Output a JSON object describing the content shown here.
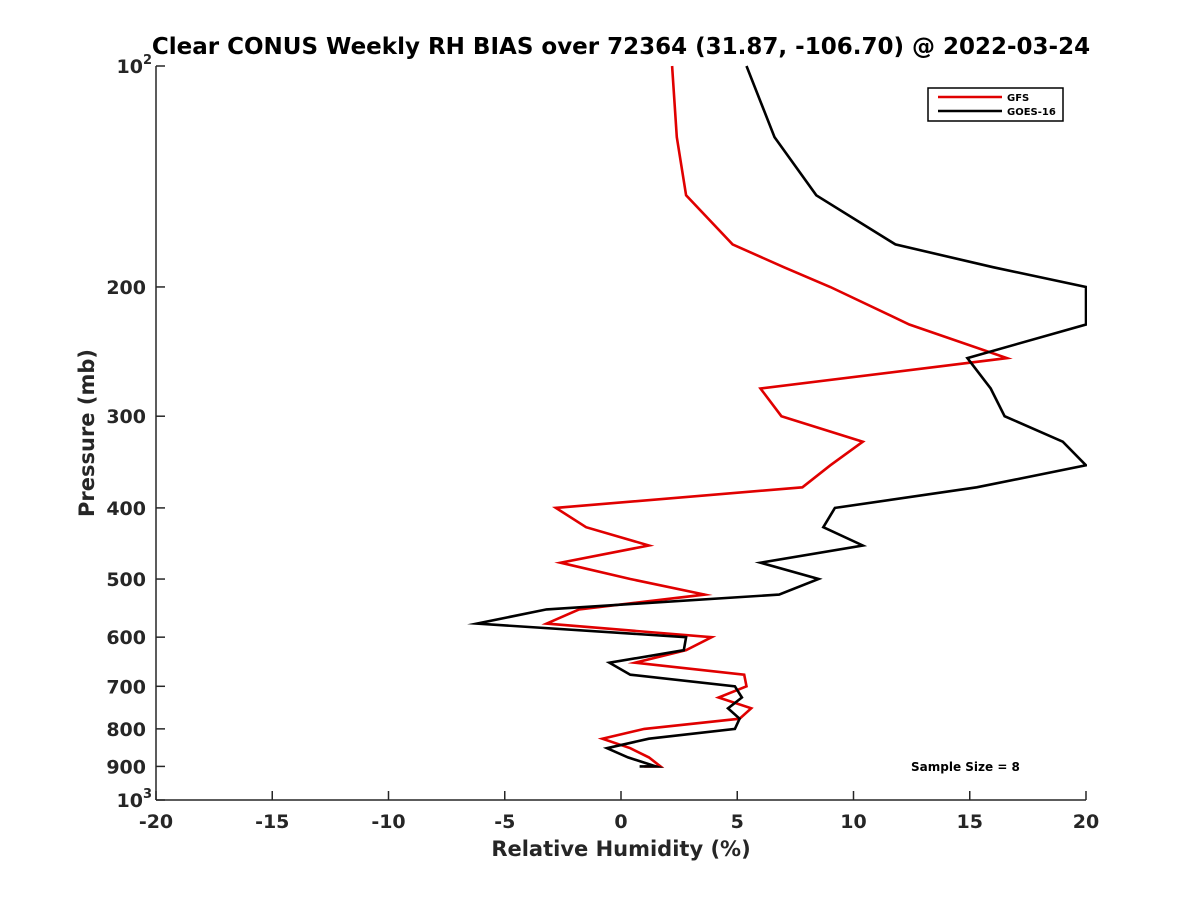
{
  "chart_data": {
    "type": "line",
    "title": "Clear CONUS Weekly RH BIAS over 72364 (31.87, -106.70) @ 2022-03-24",
    "xlabel": "Relative Humidity (%)",
    "ylabel": "Pressure (mb)",
    "xlim": [
      -20,
      20
    ],
    "ylim": [
      100,
      1000
    ],
    "y_scale": "log",
    "y_reversed": true,
    "grid": false,
    "legend_position": "top-right",
    "x_ticks": [
      -20,
      -15,
      -10,
      -5,
      0,
      5,
      10,
      15,
      20
    ],
    "x_tick_labels": [
      "-20",
      "-15",
      "-10",
      "-5",
      "0",
      "5",
      "10",
      "15",
      "20"
    ],
    "y_ticks": [
      100,
      200,
      300,
      400,
      500,
      600,
      700,
      800,
      900,
      1000
    ],
    "y_tick_labels": [
      "10^2",
      "200",
      "300",
      "400",
      "500",
      "600",
      "700",
      "800",
      "900",
      "10^3"
    ],
    "annotation": "Sample Size = 8",
    "series": [
      {
        "name": "GFS",
        "color": "#e00000",
        "points": [
          [
            2.2,
            100
          ],
          [
            2.4,
            125
          ],
          [
            2.8,
            150
          ],
          [
            4.8,
            175
          ],
          [
            7.0,
            188
          ],
          [
            9.0,
            200
          ],
          [
            12.4,
            225
          ],
          [
            16.6,
            250
          ],
          [
            6.0,
            275
          ],
          [
            6.9,
            300
          ],
          [
            10.4,
            325
          ],
          [
            9.0,
            350
          ],
          [
            7.8,
            375
          ],
          [
            -2.8,
            400
          ],
          [
            -1.5,
            425
          ],
          [
            1.2,
            450
          ],
          [
            -2.6,
            475
          ],
          [
            0.4,
            500
          ],
          [
            3.6,
            525
          ],
          [
            -1.8,
            550
          ],
          [
            -3.2,
            575
          ],
          [
            3.9,
            600
          ],
          [
            2.8,
            625
          ],
          [
            0.6,
            650
          ],
          [
            5.3,
            675
          ],
          [
            5.4,
            700
          ],
          [
            4.2,
            725
          ],
          [
            5.6,
            750
          ],
          [
            5.1,
            775
          ],
          [
            1.0,
            800
          ],
          [
            -0.8,
            825
          ],
          [
            0.4,
            850
          ],
          [
            1.2,
            875
          ],
          [
            1.7,
            900
          ],
          [
            1.0,
            900
          ]
        ]
      },
      {
        "name": "GOES-16",
        "color": "#000000",
        "points": [
          [
            5.4,
            100
          ],
          [
            6.6,
            125
          ],
          [
            8.4,
            150
          ],
          [
            11.8,
            175
          ],
          [
            16.0,
            188
          ],
          [
            20.0,
            200
          ],
          [
            20.0,
            225
          ],
          [
            14.9,
            250
          ],
          [
            15.9,
            275
          ],
          [
            16.5,
            300
          ],
          [
            19.0,
            325
          ],
          [
            20.0,
            350
          ],
          [
            15.3,
            375
          ],
          [
            9.2,
            400
          ],
          [
            8.7,
            425
          ],
          [
            10.4,
            450
          ],
          [
            6.0,
            475
          ],
          [
            8.5,
            500
          ],
          [
            6.8,
            525
          ],
          [
            -3.2,
            550
          ],
          [
            -6.2,
            575
          ],
          [
            2.8,
            600
          ],
          [
            2.7,
            625
          ],
          [
            -0.5,
            650
          ],
          [
            0.4,
            675
          ],
          [
            4.9,
            700
          ],
          [
            5.2,
            725
          ],
          [
            4.6,
            750
          ],
          [
            5.1,
            775
          ],
          [
            4.9,
            800
          ],
          [
            1.2,
            825
          ],
          [
            -0.6,
            850
          ],
          [
            0.3,
            875
          ],
          [
            1.5,
            900
          ],
          [
            0.8,
            900
          ],
          [
            1.3,
            900
          ],
          [
            1.1,
            900
          ]
        ]
      }
    ]
  }
}
